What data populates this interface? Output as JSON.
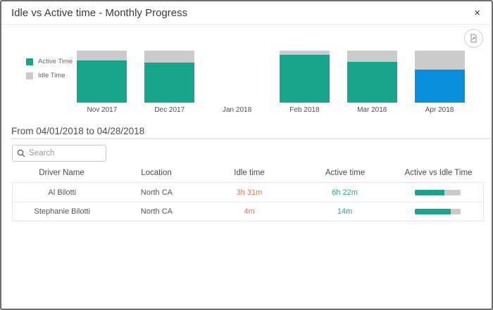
{
  "dialog": {
    "title": "Idle vs Active time - Monthly Progress"
  },
  "icons": {
    "close": "×",
    "search": "magnifier",
    "export": "document-with-arrow"
  },
  "colors": {
    "active": "#17a58c",
    "idle": "#cbcbcb",
    "selected": "#0a8ede",
    "idle_text": "#e8764f",
    "active_text": "#2aa28a"
  },
  "chart_data": {
    "type": "bar",
    "stacked": true,
    "title": "Idle vs Active time - Monthly Progress",
    "categories": [
      "Nov 2017",
      "Dec 2017",
      "Jan 2018",
      "Feb 2018",
      "Mar 2018",
      "Apr 2018"
    ],
    "series": [
      {
        "name": "Active Time",
        "color": "#17a58c",
        "values": [
          81,
          77,
          null,
          92,
          78,
          64
        ]
      },
      {
        "name": "Idle Time",
        "color": "#cbcbcb",
        "values": [
          19,
          23,
          null,
          8,
          22,
          36
        ]
      }
    ],
    "units": "percent-of-month",
    "ylim": [
      0,
      100
    ],
    "grid": false,
    "legend_position": "left",
    "selected_category": "Apr 2018",
    "selected_color": "#0a8ede"
  },
  "filter": {
    "date_range_label": "From 04/01/2018 to 04/28/2018"
  },
  "search": {
    "placeholder": "Search",
    "value": ""
  },
  "table": {
    "columns": [
      "Driver Name",
      "Location",
      "Idle time",
      "Active time",
      "Active vs Idle Time"
    ],
    "rows": [
      {
        "driver": "Al Bilotti",
        "location": "North CA",
        "idle": "3h 31m",
        "active": "6h 22m",
        "active_pct": 64
      },
      {
        "driver": "Stephanie Bilotti",
        "location": "North CA",
        "idle": "4m",
        "active": "14m",
        "active_pct": 78
      }
    ]
  }
}
